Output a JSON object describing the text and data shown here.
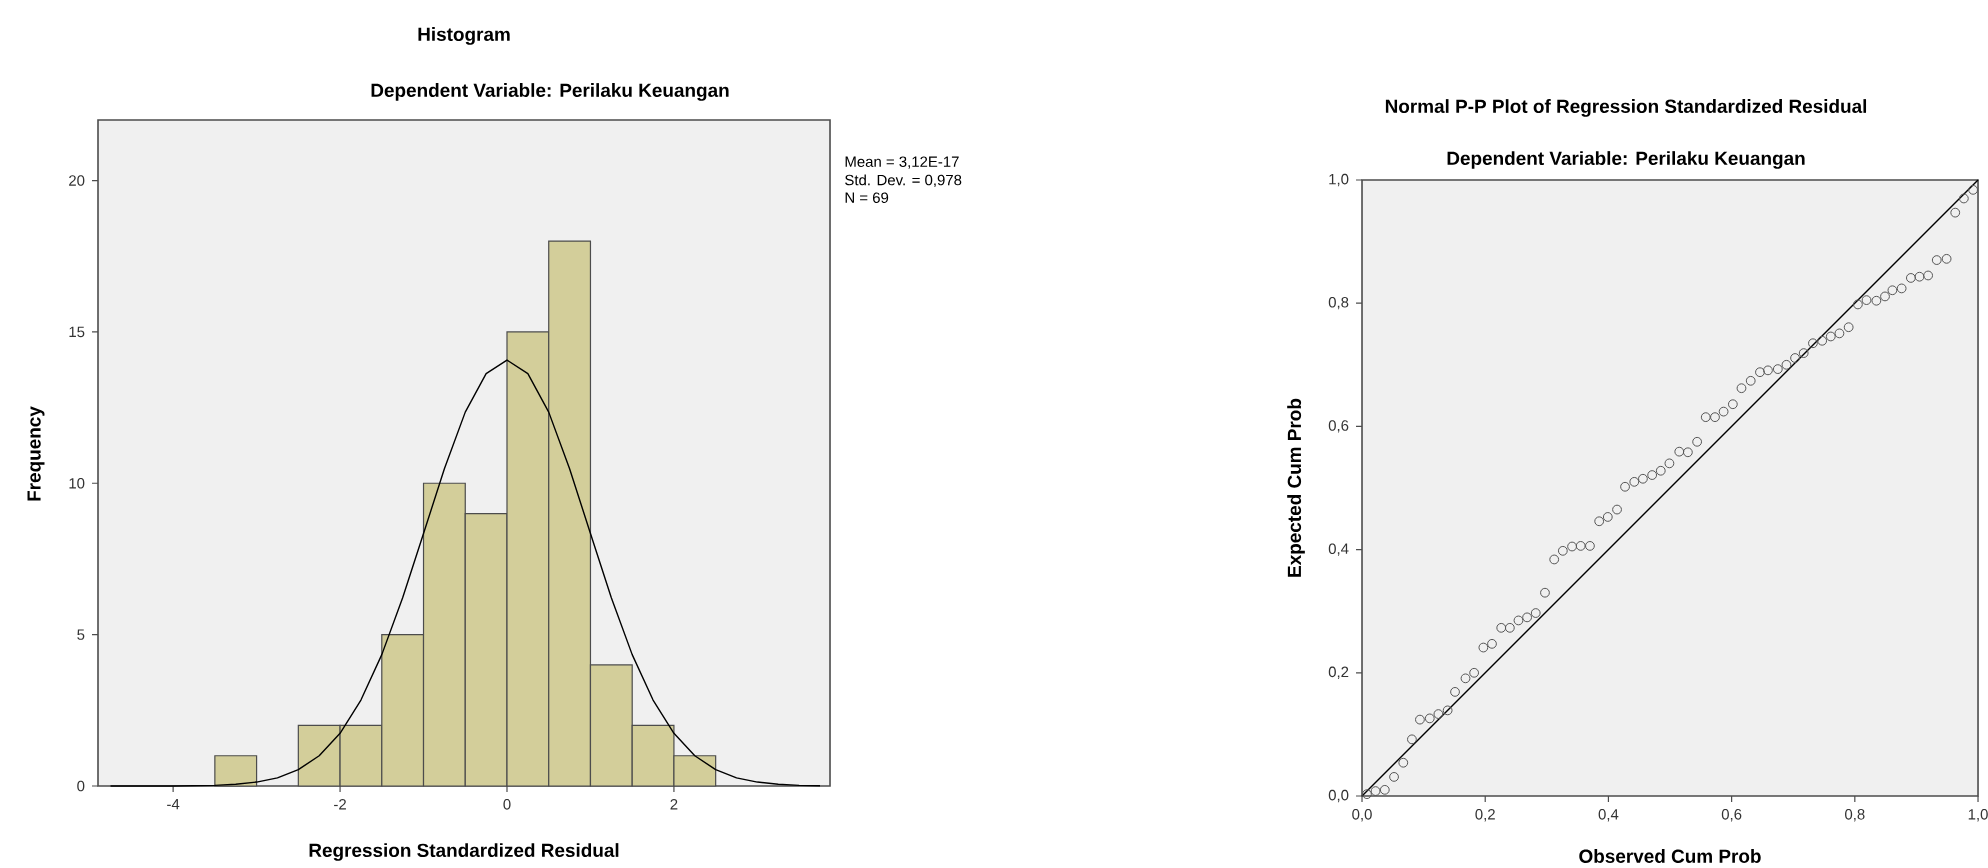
{
  "chart_data": [
    {
      "type": "histogram",
      "title": "Histogram",
      "subtitle": "Dependent Variable: Perilaku Keuangan",
      "xlabel": "Regression Standardized Residual",
      "ylabel": "Frequency",
      "annotations": [
        "Mean = 3,12E-17",
        "Std. Dev. = 0,978",
        "N = 69"
      ],
      "series": [
        {
          "color": "#d3ce9a",
          "bins": [
            -3.5,
            -3.0,
            -2.5,
            -2.0,
            -1.5,
            -1.0,
            -0.5,
            0.0,
            0.5,
            1.0,
            1.5,
            2.0,
            2.5
          ],
          "values": [
            1,
            0,
            2,
            2,
            5,
            10,
            9,
            15,
            18,
            4,
            2,
            1
          ]
        },
        {
          "type": "line",
          "color": "#000000",
          "x": [
            -4.75,
            -4.5,
            -4.25,
            -4.0,
            -3.75,
            -3.5,
            -3.25,
            -3.0,
            -2.75,
            -2.5,
            -2.25,
            -2.0,
            -1.75,
            -1.5,
            -1.25,
            -1.0,
            -0.75,
            -0.5,
            -0.25,
            0.0,
            0.25,
            0.5,
            0.75,
            1.0,
            1.25,
            1.5,
            1.75,
            2.0,
            2.25,
            2.5,
            2.75,
            3.0,
            3.25,
            3.5,
            3.75
          ],
          "values": [
            0,
            0,
            0,
            0,
            0.01,
            0.02,
            0.06,
            0.13,
            0.27,
            0.54,
            1.0,
            1.74,
            2.84,
            4.34,
            6.22,
            8.34,
            10.48,
            12.35,
            13.62,
            14.07,
            13.62,
            12.35,
            10.48,
            8.34,
            6.22,
            4.34,
            2.84,
            1.74,
            1.0,
            0.54,
            0.27,
            0.13,
            0.06,
            0.02,
            0.01
          ]
        }
      ],
      "xlim": [
        -4.9,
        3.87
      ],
      "ylim": [
        0,
        22
      ],
      "xticks": [
        -4,
        -2,
        0,
        2
      ],
      "yticks": [
        0,
        5,
        10,
        15,
        20
      ],
      "grid": false
    },
    {
      "type": "scatter",
      "title": "Normal P-P Plot of Regression Standardized Residual",
      "subtitle": "Dependent Variable: Perilaku Keuangan",
      "xlabel": "Observed Cum Prob",
      "ylabel": "Expected Cum Prob",
      "series": [
        {
          "color": "#555555",
          "marker": "circle",
          "x": [
            0.008,
            0.022,
            0.037,
            0.052,
            0.067,
            0.081,
            0.094,
            0.11,
            0.124,
            0.139,
            0.151,
            0.168,
            0.182,
            0.197,
            0.211,
            0.226,
            0.24,
            0.254,
            0.268,
            0.282,
            0.297,
            0.312,
            0.326,
            0.341,
            0.355,
            0.37,
            0.385,
            0.399,
            0.414,
            0.427,
            0.442,
            0.456,
            0.471,
            0.485,
            0.499,
            0.515,
            0.529,
            0.544,
            0.558,
            0.573,
            0.587,
            0.602,
            0.616,
            0.631,
            0.646,
            0.659,
            0.675,
            0.689,
            0.703,
            0.717,
            0.732,
            0.747,
            0.761,
            0.775,
            0.79,
            0.805,
            0.819,
            0.835,
            0.849,
            0.861,
            0.876,
            0.891,
            0.905,
            0.919,
            0.933,
            0.949,
            0.963,
            0.977,
            0.992
          ],
          "values": [
            0.003,
            0.008,
            0.01,
            0.031,
            0.054,
            0.092,
            0.124,
            0.126,
            0.133,
            0.139,
            0.169,
            0.191,
            0.2,
            0.241,
            0.247,
            0.273,
            0.273,
            0.285,
            0.29,
            0.297,
            0.33,
            0.384,
            0.398,
            0.405,
            0.406,
            0.406,
            0.446,
            0.453,
            0.465,
            0.502,
            0.51,
            0.515,
            0.521,
            0.528,
            0.54,
            0.559,
            0.558,
            0.575,
            0.615,
            0.615,
            0.624,
            0.636,
            0.662,
            0.674,
            0.688,
            0.691,
            0.693,
            0.7,
            0.711,
            0.719,
            0.735,
            0.739,
            0.746,
            0.751,
            0.761,
            0.798,
            0.805,
            0.804,
            0.811,
            0.821,
            0.824,
            0.841,
            0.843,
            0.845,
            0.87,
            0.872,
            0.947,
            0.97,
            0.984
          ]
        },
        {
          "type": "line",
          "color": "#000000",
          "marker": "none",
          "x": [
            0,
            1
          ],
          "values": [
            0,
            1
          ]
        }
      ],
      "xlim": [
        0,
        1
      ],
      "ylim": [
        0,
        1
      ],
      "xticks": [
        {
          "value": 0,
          "label": "0,0"
        },
        {
          "value": 0.2,
          "label": "0,2"
        },
        {
          "value": 0.4,
          "label": "0,4"
        },
        {
          "value": 0.6,
          "label": "0,6"
        },
        {
          "value": 0.8,
          "label": "0,8"
        },
        {
          "value": 1,
          "label": "1,0"
        }
      ],
      "yticks": [
        {
          "value": 0,
          "label": "0,0"
        },
        {
          "value": 0.2,
          "label": "0,2"
        },
        {
          "value": 0.4,
          "label": "0,4"
        },
        {
          "value": 0.6,
          "label": "0,6"
        },
        {
          "value": 0.8,
          "label": "0,8"
        },
        {
          "value": 1,
          "label": "1,0"
        }
      ],
      "grid": false
    }
  ]
}
